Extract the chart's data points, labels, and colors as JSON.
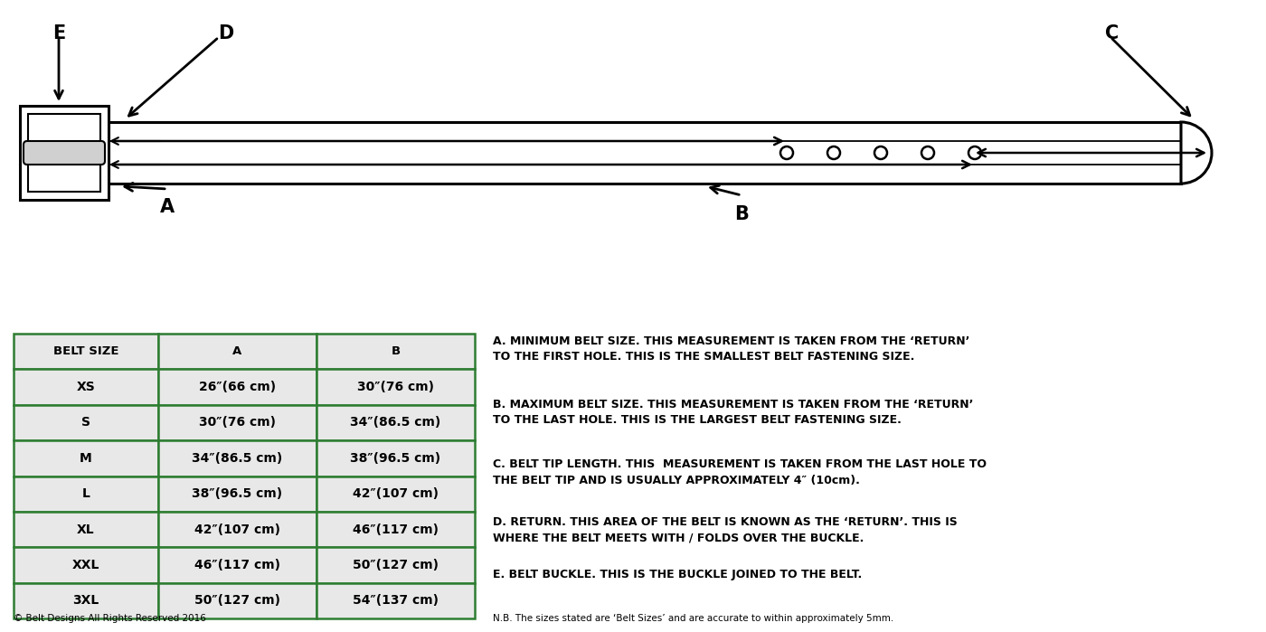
{
  "table_headers": [
    "BELT SIZE",
    "A",
    "B"
  ],
  "table_rows": [
    [
      "XS",
      "26″(66 cm)",
      "30″(76 cm)"
    ],
    [
      "S",
      "30″(76 cm)",
      "34″(86.5 cm)"
    ],
    [
      "M",
      "34″(86.5 cm)",
      "38″(96.5 cm)"
    ],
    [
      "L",
      "38″(96.5 cm)",
      "42″(107 cm)"
    ],
    [
      "XL",
      "42″(107 cm)",
      "46″(117 cm)"
    ],
    [
      "XXL",
      "46″(117 cm)",
      "50″(127 cm)"
    ],
    [
      "3XL",
      "50″(127 cm)",
      "54″(137 cm)"
    ]
  ],
  "table_border_color": "#2e7d32",
  "table_bg_color": "#e8e8e8",
  "descriptions": [
    "A. MINIMUM BELT SIZE. THIS MEASUREMENT IS TAKEN FROM THE ‘RETURN’\nTO THE FIRST HOLE. THIS IS THE SMALLEST BELT FASTENING SIZE.",
    "B. MAXIMUM BELT SIZE. THIS MEASUREMENT IS TAKEN FROM THE ‘RETURN’\nTO THE LAST HOLE. THIS IS THE LARGEST BELT FASTENING SIZE.",
    "C. BELT TIP LENGTH. THIS  MEASUREMENT IS TAKEN FROM THE LAST HOLE TO\nTHE BELT TIP AND IS USUALLY APPROXIMATELY 4″ (10cm).",
    "D. RETURN. THIS AREA OF THE BELT IS KNOWN AS THE ‘RETURN’. THIS IS\nWHERE THE BELT MEETS WITH / FOLDS OVER THE BUCKLE.",
    "E. BELT BUCKLE. THIS IS THE BUCKLE JOINED TO THE BELT."
  ],
  "footnote": "© Belt Designs All Rights Reserved 2016",
  "footnote2": "N.B. The sizes stated are ‘Belt Sizes’ and are accurate to within approximately 5mm.",
  "bg_color": "#ffffff"
}
